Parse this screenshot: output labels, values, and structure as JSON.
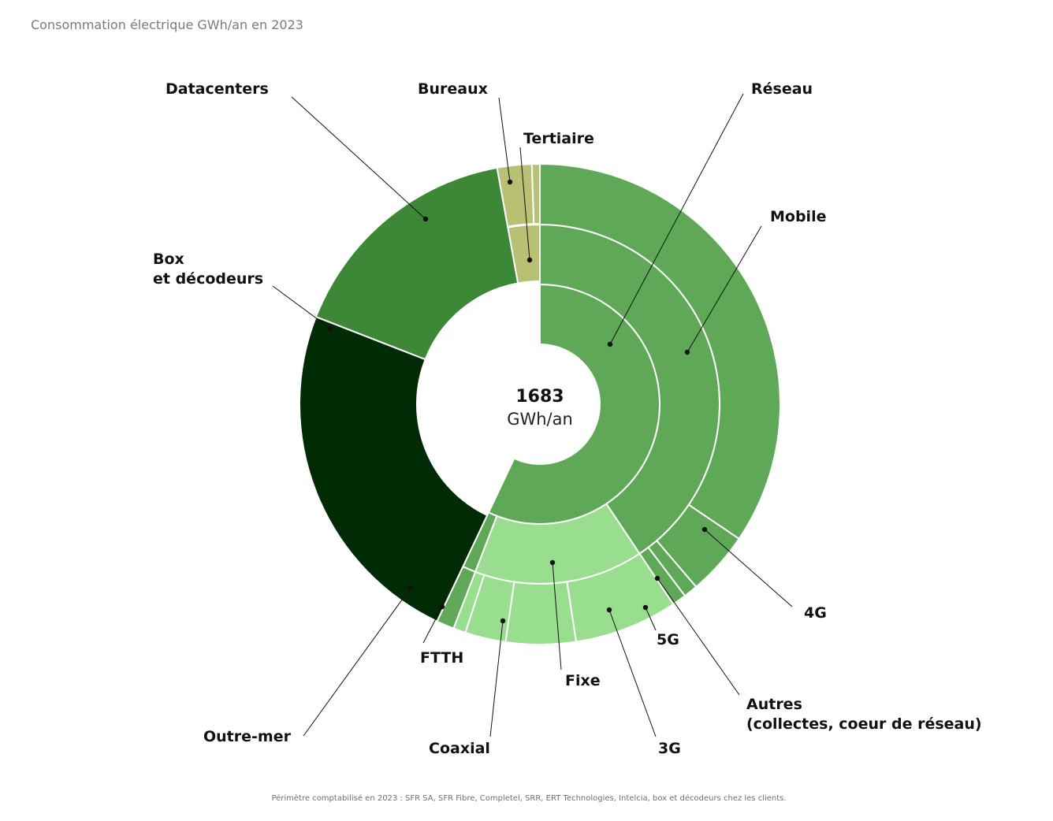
{
  "title": "Consommation électrique GWh/an en 2023",
  "footnote": "Périmètre comptabilisé en 2023 : SFR SA, SFR Fibre, Completel, SRR, ERT Technologies, Intelcia, box et décodeurs chez les clients.",
  "center": {
    "value": "1683",
    "unit": "GWh/an"
  },
  "colors": {
    "reseau": "#5fa857",
    "fixe": "#98de8e",
    "outremer": "#5fa857",
    "box": "#002b04",
    "datacenters": "#3d8837",
    "tertiaire": "#b8c173",
    "separator": "#ffffff"
  },
  "chart_data": {
    "type": "sunburst",
    "total": 1683,
    "unit": "GWh/an",
    "labels": {
      "datacenters": "Datacenters",
      "bureaux": "Bureaux",
      "tertiaire": "Tertiaire",
      "reseau": "Réseau",
      "mobile": "Mobile",
      "box": [
        "Box",
        "et décodeurs"
      ],
      "g4": "4G",
      "g5": "5G",
      "autres": [
        "Autres",
        "(collectes, coeur de réseau)"
      ],
      "g3": "3G",
      "fixe": "Fixe",
      "coaxial": "Coaxial",
      "ftth": "FTTH",
      "outremer": "Outre-mer"
    },
    "segments": [
      {
        "name": "Réseau",
        "value": 960,
        "children": [
          {
            "name": "Mobile",
            "value": 684,
            "children": [
              {
                "name": "4G",
                "value": 580
              },
              {
                "name": "Autres",
                "value": 72
              },
              {
                "name": "5G",
                "value": 16
              },
              {
                "name": "3G",
                "value": 16
              }
            ]
          },
          {
            "name": "Fixe",
            "value": 256,
            "children": [
              {
                "name": "3G",
                "value": 117
              },
              {
                "name": "Coaxial",
                "value": 79
              },
              {
                "name": "FTTH",
                "value": 46
              },
              {
                "name": "Autres",
                "value": 14
              }
            ]
          },
          {
            "name": "Outre-mer",
            "value": 20,
            "children": [
              {
                "name": "Outre-mer",
                "value": 20
              }
            ]
          }
        ]
      },
      {
        "name": "Box et décodeurs",
        "value": 402
      },
      {
        "name": "Datacenters",
        "value": 273
      },
      {
        "name": "Tertiaire",
        "value": 48,
        "children": [
          {
            "name": "Bureaux",
            "value": 39
          },
          {
            "name": "Tertiaire",
            "value": 9
          }
        ]
      }
    ]
  }
}
